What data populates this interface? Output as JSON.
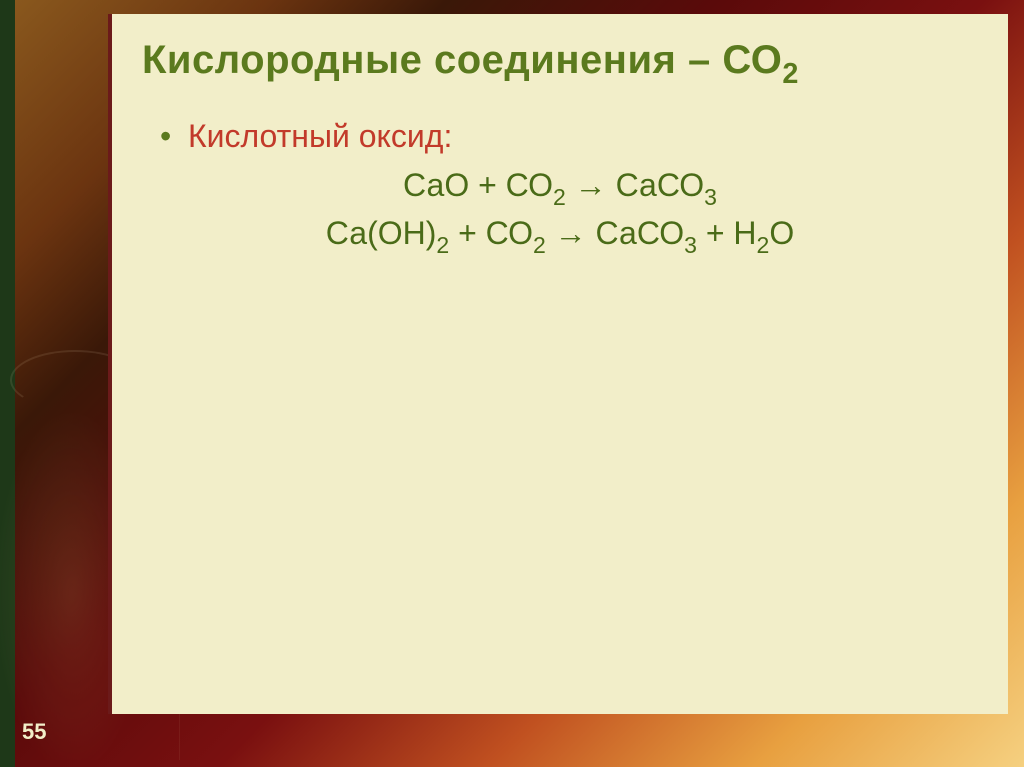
{
  "colors": {
    "title": "#5b7a1e",
    "bullet_text": "#c23a2a",
    "bullet_dot": "#5b7a1e",
    "equation": "#4a6b18",
    "panel_bg": "#f2eec9",
    "panel_border": "#6b1a1a",
    "slide_number": "#f2eec9"
  },
  "title": {
    "text_before": "Кислородные соединения – СО",
    "sub_after": "2",
    "fontsize": 40
  },
  "bullet": {
    "dot": "•",
    "text": "Кислотный оксид:",
    "fontsize": 32
  },
  "equations": {
    "fontsize": 32,
    "eq1": {
      "parts": [
        "СаО + СО",
        "2",
        " → СаСО",
        "3"
      ]
    },
    "eq2": {
      "parts": [
        "Са(ОН)",
        "2",
        " + СО",
        "2",
        " → СаСО",
        "3",
        " + Н",
        "2",
        "О"
      ]
    }
  },
  "slide_number": "55"
}
